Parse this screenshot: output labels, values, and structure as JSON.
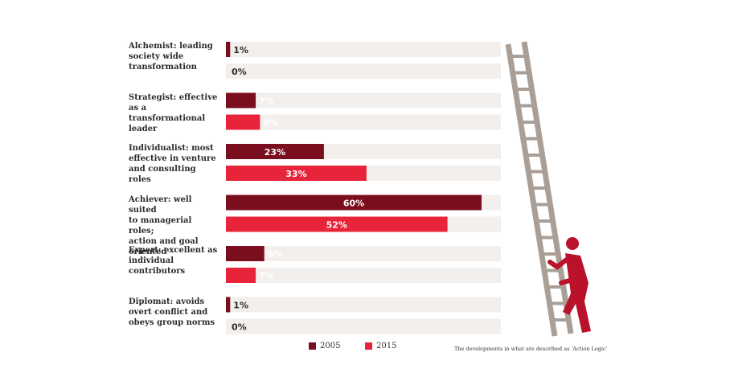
{
  "chart_data": {
    "type": "bar",
    "orientation": "horizontal",
    "categories": [
      "Alchemist: leading\nsociety wide\ntransformation",
      "Strategist: effective\nas a\ntransformational\nleader",
      "Individualist: most\neffective in venture\nand consulting\nroles",
      "Achiever: well suited\nto managerial roles;\naction and goal\noriented",
      "Expert: excellent as\nindividual\ncontributors",
      "Diplomat: avoids\novert conflict and\nobeys group norms"
    ],
    "series": [
      {
        "name": "2005",
        "color": "#7a0e1e",
        "values": [
          1,
          7,
          23,
          60,
          9,
          1
        ],
        "labels": [
          "1%",
          "7%",
          "23%",
          "60%",
          "9%",
          "1%"
        ]
      },
      {
        "name": "2015",
        "color": "#e8243a",
        "values": [
          0,
          8,
          33,
          52,
          7,
          0
        ],
        "labels": [
          "0%",
          "8%",
          "33%",
          "52%",
          "7%",
          "0%"
        ]
      }
    ],
    "xlim": [
      0,
      65
    ],
    "legend_position": "bottom",
    "grid": false,
    "colors": {
      "track": "#f2efed",
      "label_dark": "#2b2b2b",
      "label_light": "#ffffff",
      "ladder": "#a99f97",
      "figure": "#b9122a"
    }
  },
  "caption": "The developments in what are described as 'Action Logic'"
}
